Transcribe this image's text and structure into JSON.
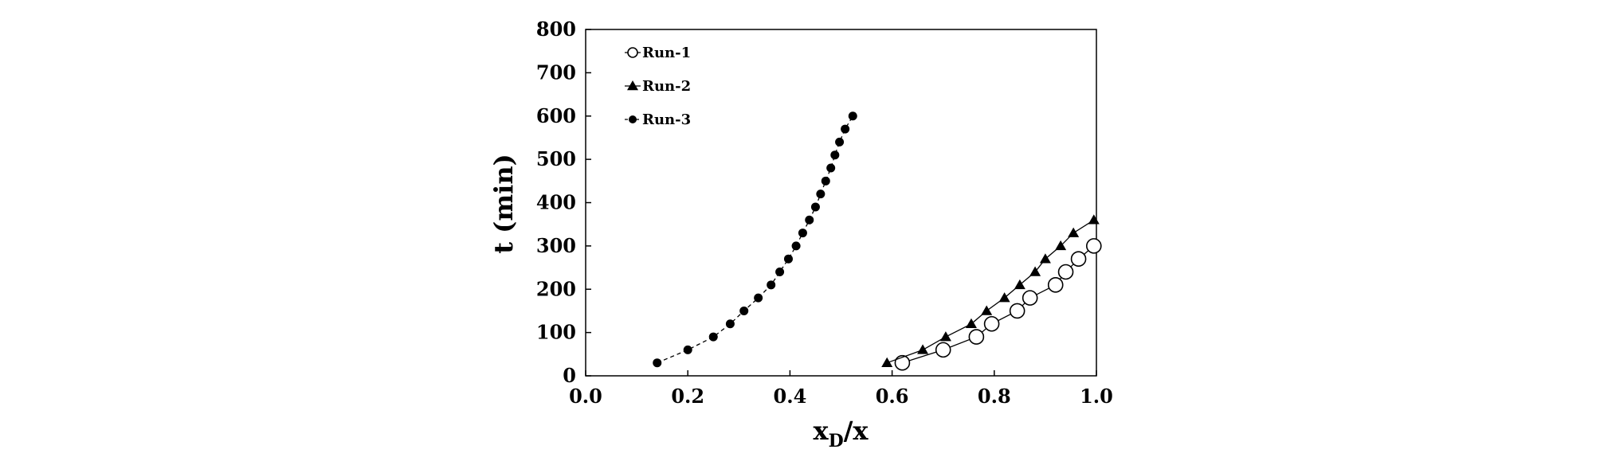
{
  "chart_data": {
    "type": "scatter",
    "xlabel_main": "x",
    "xlabel_sub": "D",
    "xlabel_rest": "/x",
    "ylabel": "t (min)",
    "xlim": [
      0.0,
      1.0
    ],
    "ylim": [
      0,
      800
    ],
    "xticks": [
      "0.0",
      "0.2",
      "0.4",
      "0.6",
      "0.8",
      "1.0"
    ],
    "xtick_values": [
      0.0,
      0.2,
      0.4,
      0.6,
      0.8,
      1.0
    ],
    "yticks": [
      "0",
      "100",
      "200",
      "300",
      "400",
      "500",
      "600",
      "700",
      "800"
    ],
    "ytick_values": [
      0,
      100,
      200,
      300,
      400,
      500,
      600,
      700,
      800
    ],
    "grid": false,
    "legend_position": "top-left",
    "series": [
      {
        "name": "Run-1",
        "marker": "open-circle",
        "line": "solid",
        "x": [
          0.62,
          0.7,
          0.765,
          0.795,
          0.845,
          0.87,
          0.92,
          0.94,
          0.965,
          0.995
        ],
        "y": [
          30,
          60,
          90,
          120,
          150,
          180,
          210,
          240,
          270,
          300
        ]
      },
      {
        "name": "Run-2",
        "marker": "filled-triangle",
        "line": "solid",
        "x": [
          0.59,
          0.66,
          0.705,
          0.755,
          0.785,
          0.82,
          0.85,
          0.88,
          0.9,
          0.93,
          0.955,
          0.995
        ],
        "y": [
          30,
          60,
          90,
          120,
          150,
          180,
          210,
          240,
          270,
          300,
          330,
          360
        ]
      },
      {
        "name": "Run-3",
        "marker": "filled-circle",
        "line": "dashed",
        "x": [
          0.14,
          0.2,
          0.25,
          0.283,
          0.31,
          0.338,
          0.363,
          0.38,
          0.397,
          0.412,
          0.425,
          0.438,
          0.45,
          0.46,
          0.47,
          0.48,
          0.488,
          0.497,
          0.508,
          0.523
        ],
        "y": [
          30,
          60,
          90,
          120,
          150,
          180,
          210,
          240,
          270,
          300,
          330,
          360,
          390,
          420,
          450,
          480,
          510,
          540,
          570,
          600
        ]
      }
    ]
  }
}
